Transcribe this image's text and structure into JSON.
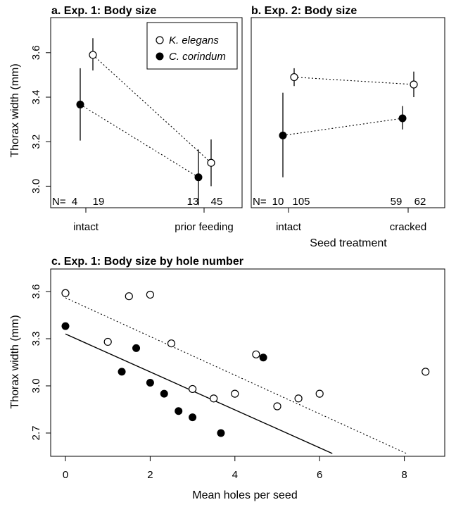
{
  "chart_data": [
    {
      "panel": "a",
      "type": "scatter",
      "title": "a. Exp. 1: Body size",
      "ylabel": "Thorax width (mm)",
      "xlabel": "",
      "categories": [
        "intact",
        "prior feeding"
      ],
      "ylim": [
        2.9,
        3.7
      ],
      "yticks": [
        "3.0",
        "3.2",
        "3.4",
        "3.6"
      ],
      "n_prefix": "N=",
      "n_labels": [
        "4",
        "19",
        "13",
        "45"
      ],
      "series": [
        {
          "name": "K. elegans",
          "marker": "open",
          "values": [
            3.59,
            3.105
          ],
          "lower": [
            3.52,
            3.0
          ],
          "upper": [
            3.665,
            3.21
          ]
        },
        {
          "name": "C. corindum",
          "marker": "filled",
          "values": [
            3.367,
            3.04
          ],
          "lower": [
            3.205,
            2.915
          ],
          "upper": [
            3.53,
            3.165
          ]
        }
      ],
      "legend": "top-right"
    },
    {
      "panel": "b",
      "type": "scatter",
      "title": "b. Exp. 2: Body size",
      "xlabel": "Seed treatment",
      "categories": [
        "intact",
        "cracked"
      ],
      "ylim": [
        2.9,
        3.7
      ],
      "n_prefix": "N=",
      "n_labels": [
        "10",
        "105",
        "59",
        "62"
      ],
      "series": [
        {
          "name": "K. elegans",
          "marker": "open",
          "values": [
            3.49,
            3.457
          ],
          "lower": [
            3.45,
            3.4
          ],
          "upper": [
            3.53,
            3.515
          ]
        },
        {
          "name": "C. corindum",
          "marker": "filled",
          "values": [
            3.228,
            3.305
          ],
          "lower": [
            3.04,
            3.255
          ],
          "upper": [
            3.42,
            3.36
          ]
        }
      ]
    },
    {
      "panel": "c",
      "type": "scatter",
      "title": "c. Exp. 1: Body size by hole number",
      "xlabel": "Mean holes per seed",
      "ylabel": "Thorax width (mm)",
      "xlim": [
        -0.3,
        9.0
      ],
      "ylim": [
        2.55,
        3.7
      ],
      "xticks": [
        "0",
        "2",
        "4",
        "6",
        "8"
      ],
      "yticks": [
        "2.7",
        "3.0",
        "3.3",
        "3.6"
      ],
      "series": [
        {
          "name": "K. elegans",
          "marker": "open",
          "fit": "dotted",
          "fit_line": {
            "x": [
              0,
              8.05
            ],
            "y": [
              3.56,
              2.57
            ]
          },
          "points": [
            [
              0,
              3.59
            ],
            [
              1.5,
              3.57
            ],
            [
              2,
              3.58
            ],
            [
              1,
              3.28
            ],
            [
              2.5,
              3.27
            ],
            [
              4.5,
              3.2
            ],
            [
              3,
              2.98
            ],
            [
              3.5,
              2.92
            ],
            [
              4,
              2.95
            ],
            [
              5,
              2.87
            ],
            [
              5.5,
              2.92
            ],
            [
              6,
              2.95
            ],
            [
              8.5,
              3.09
            ]
          ]
        },
        {
          "name": "C. corindum",
          "marker": "filled",
          "fit": "solid",
          "fit_line": {
            "x": [
              0,
              6.3
            ],
            "y": [
              3.33,
              2.57
            ]
          },
          "points": [
            [
              0,
              3.38
            ],
            [
              1.67,
              3.24
            ],
            [
              1.33,
              3.09
            ],
            [
              2,
              3.02
            ],
            [
              2.33,
              2.95
            ],
            [
              2.67,
              2.84
            ],
            [
              3,
              2.8
            ],
            [
              3.67,
              2.7
            ],
            [
              4.67,
              3.18
            ]
          ]
        }
      ]
    }
  ]
}
